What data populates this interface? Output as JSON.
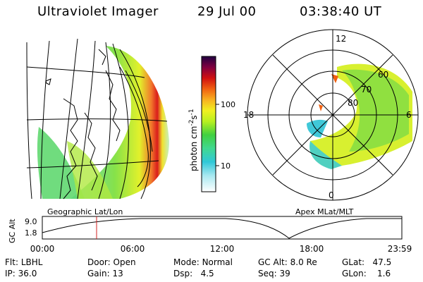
{
  "header": {
    "title": "Ultraviolet Imager",
    "date": "29 Jul 00",
    "time": "03:38:40 UT"
  },
  "colorbar": {
    "label_parts": {
      "a": "photon cm",
      "b": "-2",
      "c": "s",
      "d": "-1"
    },
    "ticks": [
      "100",
      "10"
    ]
  },
  "polar": {
    "mlt_labels": [
      "12",
      "18",
      "6",
      "0"
    ],
    "lat_labels": [
      "60",
      "70",
      "80"
    ]
  },
  "projection": {
    "left_label": "Geographic Lat/Lon",
    "right_label": "Apex MLat/MLT"
  },
  "altitude_plot": {
    "ylabel": "GC Alt",
    "y_ticks": [
      "9.0",
      "1.8"
    ],
    "x_ticks": [
      "00:00",
      "06:00",
      "12:00",
      "18:00",
      "23:59"
    ]
  },
  "info": {
    "flt": {
      "label": "Flt:",
      "value": "LBHL"
    },
    "ip": {
      "label": "IP:",
      "value": "36.0"
    },
    "door": {
      "label": "Door:",
      "value": "Open"
    },
    "gain": {
      "label": "Gain:",
      "value": "13"
    },
    "mode": {
      "label": "Mode:",
      "value": "Normal"
    },
    "dsp": {
      "label": "Dsp:",
      "value": "4.5"
    },
    "gcalt": {
      "label": "GC Alt:",
      "value": "8.0 Re"
    },
    "seq": {
      "label": "Seq:",
      "value": "39"
    },
    "glat": {
      "label": "GLat:",
      "value": "47.5"
    },
    "glon": {
      "label": "GLon:",
      "value": "1.6"
    }
  }
}
